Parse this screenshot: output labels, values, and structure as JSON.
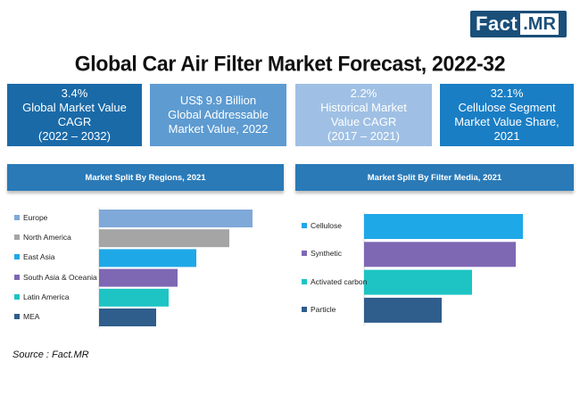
{
  "logo": {
    "word": "Fact",
    "suffix": ".MR"
  },
  "title": "Global Car Air Filter Market Forecast, 2022-32",
  "kpis": [
    {
      "lines": [
        "3.4%",
        "Global Market Value",
        "CAGR",
        "(2022 – 2032)"
      ],
      "color": "#1a6aa8"
    },
    {
      "lines": [
        "US$ 9.9 Billion",
        "Global Addressable",
        "Market Value, 2022"
      ],
      "color": "#5d9bd1"
    },
    {
      "lines": [
        "2.2%",
        "Historical Market",
        "Value CAGR",
        "(2017 – 2021)"
      ],
      "color": "#9fc0e4"
    },
    {
      "lines": [
        "32.1%",
        "Cellulose Segment",
        "Market Value Share,",
        "2021"
      ],
      "color": "#1a7ec4"
    }
  ],
  "source": "Source : Fact.MR",
  "chart_data": [
    {
      "type": "bar",
      "title": "Market Split By Regions, 2021",
      "categories": [
        "Europe",
        "North America",
        "East Asia",
        "South Asia & Oceania",
        "Latin America",
        "MEA"
      ],
      "values": [
        172,
        146,
        109,
        88,
        78,
        64
      ],
      "colors": [
        "#7fa9d9",
        "#a5a5a5",
        "#1fa8e8",
        "#7e68b3",
        "#1ec4c4",
        "#2f5d8c"
      ]
    },
    {
      "type": "bar",
      "title": "Market Split By Filter Media, 2021",
      "categories": [
        "Cellulose",
        "Synthetic",
        "Activated carbon",
        "Particle"
      ],
      "values": [
        178,
        170,
        121,
        87
      ],
      "colors": [
        "#1fa8e8",
        "#7e68b3",
        "#1ec4c4",
        "#2f5d8c"
      ]
    }
  ]
}
